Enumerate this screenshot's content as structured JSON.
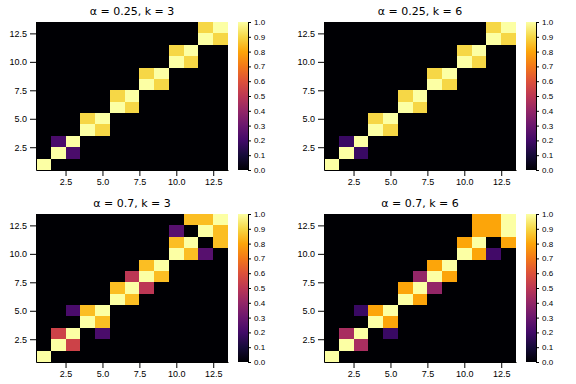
{
  "chart_data": [
    {
      "type": "heatmap",
      "title": "α = 0.25, k = 3",
      "xlim": [
        0.5,
        13.5
      ],
      "ylim": [
        0.5,
        13.5
      ],
      "xticks": [
        2.5,
        {
          "value": 5,
          "label": "5.0"
        },
        7.5,
        {
          "value": 10,
          "label": "10.0"
        },
        12.5
      ],
      "yticks": [
        2.5,
        {
          "value": 5,
          "label": "5.0"
        },
        7.5,
        {
          "value": 10,
          "label": "10.0"
        },
        12.5
      ],
      "color_range": [
        0,
        1
      ],
      "color_ticks": [
        {
          "value": 0,
          "label": "0.0"
        },
        0.1,
        0.2,
        0.3,
        0.4,
        0.5,
        0.6,
        0.7,
        0.8,
        0.9,
        {
          "value": 1,
          "label": "1.0"
        }
      ],
      "cells": [
        [
          1.0,
          0.0,
          0.0,
          0.0,
          0.0,
          0.0,
          0.0,
          0.0,
          0.0,
          0.0,
          0.0,
          0.0,
          0.0
        ],
        [
          0.0,
          1.0,
          0.22,
          0.0,
          0.0,
          0.0,
          0.0,
          0.0,
          0.0,
          0.0,
          0.0,
          0.0,
          0.0
        ],
        [
          0.0,
          0.22,
          1.0,
          0.0,
          0.0,
          0.0,
          0.0,
          0.0,
          0.0,
          0.0,
          0.0,
          0.0,
          0.0
        ],
        [
          0.0,
          0.0,
          0.0,
          1.0,
          0.9,
          0.0,
          0.0,
          0.0,
          0.0,
          0.0,
          0.0,
          0.0,
          0.0
        ],
        [
          0.0,
          0.0,
          0.0,
          0.9,
          1.0,
          0.0,
          0.0,
          0.0,
          0.0,
          0.0,
          0.0,
          0.0,
          0.0
        ],
        [
          0.0,
          0.0,
          0.0,
          0.0,
          0.0,
          1.0,
          0.9,
          0.0,
          0.0,
          0.0,
          0.0,
          0.0,
          0.0
        ],
        [
          0.0,
          0.0,
          0.0,
          0.0,
          0.0,
          0.9,
          1.0,
          0.0,
          0.0,
          0.0,
          0.0,
          0.0,
          0.0
        ],
        [
          0.0,
          0.0,
          0.0,
          0.0,
          0.0,
          0.0,
          0.0,
          1.0,
          0.9,
          0.0,
          0.0,
          0.0,
          0.0
        ],
        [
          0.0,
          0.0,
          0.0,
          0.0,
          0.0,
          0.0,
          0.0,
          0.9,
          1.0,
          0.0,
          0.0,
          0.0,
          0.0
        ],
        [
          0.0,
          0.0,
          0.0,
          0.0,
          0.0,
          0.0,
          0.0,
          0.0,
          0.0,
          1.0,
          0.9,
          0.0,
          0.0
        ],
        [
          0.0,
          0.0,
          0.0,
          0.0,
          0.0,
          0.0,
          0.0,
          0.0,
          0.0,
          0.9,
          1.0,
          0.0,
          0.0
        ],
        [
          0.0,
          0.0,
          0.0,
          0.0,
          0.0,
          0.0,
          0.0,
          0.0,
          0.0,
          0.0,
          0.0,
          1.0,
          0.9
        ],
        [
          0.0,
          0.0,
          0.0,
          0.0,
          0.0,
          0.0,
          0.0,
          0.0,
          0.0,
          0.0,
          0.0,
          0.9,
          1.0
        ]
      ]
    },
    {
      "type": "heatmap",
      "title": "α = 0.25, k = 6",
      "xlim": [
        0.5,
        13.5
      ],
      "ylim": [
        0.5,
        13.5
      ],
      "xticks": [
        2.5,
        {
          "value": 5,
          "label": "5.0"
        },
        7.5,
        {
          "value": 10,
          "label": "10.0"
        },
        12.5
      ],
      "yticks": [
        2.5,
        {
          "value": 5,
          "label": "5.0"
        },
        7.5,
        {
          "value": 10,
          "label": "10.0"
        },
        12.5
      ],
      "color_range": [
        0,
        1
      ],
      "color_ticks": [
        {
          "value": 0,
          "label": "0.0"
        },
        0.1,
        0.2,
        0.3,
        0.4,
        0.5,
        0.6,
        0.7,
        0.8,
        0.9,
        {
          "value": 1,
          "label": "1.0"
        }
      ],
      "cells": [
        [
          1.0,
          0.0,
          0.0,
          0.0,
          0.0,
          0.0,
          0.0,
          0.0,
          0.0,
          0.0,
          0.0,
          0.0,
          0.0
        ],
        [
          0.0,
          1.0,
          0.18,
          0.0,
          0.0,
          0.0,
          0.0,
          0.0,
          0.0,
          0.0,
          0.0,
          0.0,
          0.0
        ],
        [
          0.0,
          0.18,
          1.0,
          0.0,
          0.0,
          0.0,
          0.0,
          0.0,
          0.0,
          0.0,
          0.0,
          0.0,
          0.0
        ],
        [
          0.0,
          0.0,
          0.0,
          1.0,
          0.9,
          0.0,
          0.0,
          0.0,
          0.0,
          0.0,
          0.0,
          0.0,
          0.0
        ],
        [
          0.0,
          0.0,
          0.0,
          0.9,
          1.0,
          0.0,
          0.0,
          0.0,
          0.0,
          0.0,
          0.0,
          0.0,
          0.0
        ],
        [
          0.0,
          0.0,
          0.0,
          0.0,
          0.0,
          1.0,
          0.9,
          0.0,
          0.0,
          0.0,
          0.0,
          0.0,
          0.0
        ],
        [
          0.0,
          0.0,
          0.0,
          0.0,
          0.0,
          0.9,
          1.0,
          0.0,
          0.0,
          0.0,
          0.0,
          0.0,
          0.0
        ],
        [
          0.0,
          0.0,
          0.0,
          0.0,
          0.0,
          0.0,
          0.0,
          1.0,
          0.9,
          0.0,
          0.0,
          0.0,
          0.0
        ],
        [
          0.0,
          0.0,
          0.0,
          0.0,
          0.0,
          0.0,
          0.0,
          0.9,
          1.0,
          0.0,
          0.0,
          0.0,
          0.0
        ],
        [
          0.0,
          0.0,
          0.0,
          0.0,
          0.0,
          0.0,
          0.0,
          0.0,
          0.0,
          1.0,
          0.9,
          0.0,
          0.0
        ],
        [
          0.0,
          0.0,
          0.0,
          0.0,
          0.0,
          0.0,
          0.0,
          0.0,
          0.0,
          0.9,
          1.0,
          0.0,
          0.0
        ],
        [
          0.0,
          0.0,
          0.0,
          0.0,
          0.0,
          0.0,
          0.0,
          0.0,
          0.0,
          0.0,
          0.0,
          1.0,
          0.9
        ],
        [
          0.0,
          0.0,
          0.0,
          0.0,
          0.0,
          0.0,
          0.0,
          0.0,
          0.0,
          0.0,
          0.0,
          0.9,
          1.0
        ]
      ]
    },
    {
      "type": "heatmap",
      "title": "α = 0.7, k = 3",
      "xlim": [
        0.5,
        13.5
      ],
      "ylim": [
        0.5,
        13.5
      ],
      "xticks": [
        2.5,
        {
          "value": 5,
          "label": "5.0"
        },
        7.5,
        {
          "value": 10,
          "label": "10.0"
        },
        12.5
      ],
      "yticks": [
        2.5,
        {
          "value": 5,
          "label": "5.0"
        },
        7.5,
        {
          "value": 10,
          "label": "10.0"
        },
        12.5
      ],
      "color_range": [
        0,
        1
      ],
      "color_ticks": [
        {
          "value": 0,
          "label": "0.0"
        },
        0.1,
        0.2,
        0.3,
        0.4,
        0.5,
        0.6,
        0.7,
        0.8,
        0.9,
        {
          "value": 1,
          "label": "1.0"
        }
      ],
      "cells": [
        [
          1.0,
          0.0,
          0.0,
          0.0,
          0.0,
          0.0,
          0.0,
          0.0,
          0.0,
          0.0,
          0.0,
          0.0,
          0.0
        ],
        [
          0.0,
          1.0,
          0.55,
          0.0,
          0.0,
          0.0,
          0.0,
          0.0,
          0.0,
          0.0,
          0.0,
          0.0,
          0.0
        ],
        [
          0.0,
          0.55,
          1.0,
          0.0,
          0.22,
          0.0,
          0.0,
          0.0,
          0.0,
          0.0,
          0.0,
          0.0,
          0.0
        ],
        [
          0.0,
          0.0,
          0.0,
          1.0,
          0.85,
          0.0,
          0.0,
          0.0,
          0.0,
          0.0,
          0.0,
          0.0,
          0.0
        ],
        [
          0.0,
          0.0,
          0.22,
          0.85,
          1.0,
          0.0,
          0.0,
          0.0,
          0.0,
          0.0,
          0.0,
          0.0,
          0.0
        ],
        [
          0.0,
          0.0,
          0.0,
          0.0,
          0.0,
          1.0,
          0.85,
          0.0,
          0.0,
          0.0,
          0.0,
          0.0,
          0.0
        ],
        [
          0.0,
          0.0,
          0.0,
          0.0,
          0.0,
          0.85,
          1.0,
          0.5,
          0.0,
          0.0,
          0.0,
          0.0,
          0.0
        ],
        [
          0.0,
          0.0,
          0.0,
          0.0,
          0.0,
          0.0,
          0.5,
          1.0,
          0.85,
          0.0,
          0.0,
          0.0,
          0.0
        ],
        [
          0.0,
          0.0,
          0.0,
          0.0,
          0.0,
          0.0,
          0.0,
          0.85,
          1.0,
          0.0,
          0.0,
          0.0,
          0.0
        ],
        [
          0.0,
          0.0,
          0.0,
          0.0,
          0.0,
          0.0,
          0.0,
          0.0,
          0.0,
          1.0,
          0.85,
          0.25,
          0.0
        ],
        [
          0.0,
          0.0,
          0.0,
          0.0,
          0.0,
          0.0,
          0.0,
          0.0,
          0.0,
          0.85,
          1.0,
          0.0,
          0.85
        ],
        [
          0.0,
          0.0,
          0.0,
          0.0,
          0.0,
          0.0,
          0.0,
          0.0,
          0.0,
          0.25,
          0.0,
          1.0,
          0.85
        ],
        [
          0.0,
          0.0,
          0.0,
          0.0,
          0.0,
          0.0,
          0.0,
          0.0,
          0.0,
          0.0,
          0.85,
          0.85,
          1.0
        ]
      ]
    },
    {
      "type": "heatmap",
      "title": "α = 0.7, k = 6",
      "xlim": [
        0.5,
        13.5
      ],
      "ylim": [
        0.5,
        13.5
      ],
      "xticks": [
        2.5,
        {
          "value": 5,
          "label": "5.0"
        },
        7.5,
        {
          "value": 10,
          "label": "10.0"
        },
        12.5
      ],
      "yticks": [
        2.5,
        {
          "value": 5,
          "label": "5.0"
        },
        7.5,
        {
          "value": 10,
          "label": "10.0"
        },
        12.5
      ],
      "color_range": [
        0,
        1
      ],
      "color_ticks": [
        {
          "value": 0,
          "label": "0.0"
        },
        0.1,
        0.2,
        0.3,
        0.4,
        0.5,
        0.6,
        0.7,
        0.8,
        0.9,
        {
          "value": 1,
          "label": "1.0"
        }
      ],
      "cells": [
        [
          1.0,
          0.0,
          0.0,
          0.0,
          0.0,
          0.0,
          0.0,
          0.0,
          0.0,
          0.0,
          0.0,
          0.0,
          0.0
        ],
        [
          0.0,
          1.0,
          0.45,
          0.0,
          0.0,
          0.0,
          0.0,
          0.0,
          0.0,
          0.0,
          0.0,
          0.0,
          0.0
        ],
        [
          0.0,
          0.45,
          1.0,
          0.0,
          0.18,
          0.0,
          0.0,
          0.0,
          0.0,
          0.0,
          0.0,
          0.0,
          0.0
        ],
        [
          0.0,
          0.0,
          0.0,
          1.0,
          0.8,
          0.0,
          0.0,
          0.0,
          0.0,
          0.0,
          0.0,
          0.0,
          0.0
        ],
        [
          0.0,
          0.0,
          0.18,
          0.8,
          1.0,
          0.0,
          0.0,
          0.0,
          0.0,
          0.0,
          0.0,
          0.0,
          0.0
        ],
        [
          0.0,
          0.0,
          0.0,
          0.0,
          0.0,
          1.0,
          0.8,
          0.0,
          0.0,
          0.0,
          0.0,
          0.0,
          0.0
        ],
        [
          0.0,
          0.0,
          0.0,
          0.0,
          0.0,
          0.8,
          1.0,
          0.4,
          0.0,
          0.0,
          0.0,
          0.0,
          0.0
        ],
        [
          0.0,
          0.0,
          0.0,
          0.0,
          0.0,
          0.0,
          0.4,
          1.0,
          0.8,
          0.0,
          0.0,
          0.0,
          0.0
        ],
        [
          0.0,
          0.0,
          0.0,
          0.0,
          0.0,
          0.0,
          0.0,
          0.8,
          1.0,
          0.0,
          0.0,
          0.0,
          0.0
        ],
        [
          0.0,
          0.0,
          0.0,
          0.0,
          0.0,
          0.0,
          0.0,
          0.0,
          0.0,
          1.0,
          0.8,
          0.2,
          0.0
        ],
        [
          0.0,
          0.0,
          0.0,
          0.0,
          0.0,
          0.0,
          0.0,
          0.0,
          0.0,
          0.8,
          1.0,
          0.0,
          0.8
        ],
        [
          0.0,
          0.0,
          0.0,
          0.0,
          0.0,
          0.0,
          0.0,
          0.0,
          0.0,
          0.0,
          0.8,
          0.8,
          1.0
        ],
        [
          0.0,
          0.0,
          0.0,
          0.0,
          0.0,
          0.0,
          0.0,
          0.0,
          0.0,
          0.0,
          0.8,
          0.8,
          1.0
        ]
      ]
    }
  ]
}
